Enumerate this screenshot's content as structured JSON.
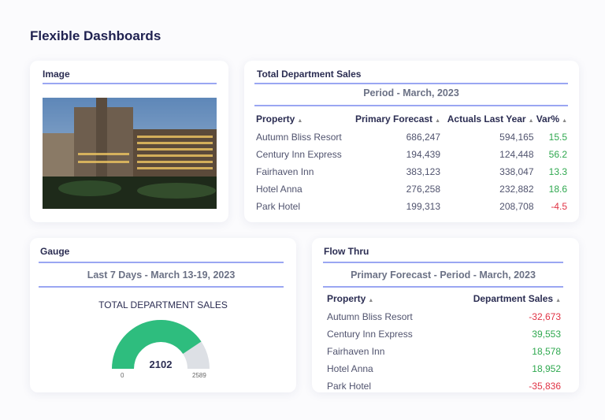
{
  "page_title": "Flexible Dashboards",
  "image_card": {
    "title": "Image"
  },
  "sales_card": {
    "title": "Total Department Sales",
    "period": "Period - March, 2023",
    "columns": [
      "Property",
      "Primary Forecast",
      "Actuals Last Year",
      "Var%"
    ],
    "rows": [
      [
        "Autumn Bliss Resort",
        "686,247",
        "594,165",
        "15.5"
      ],
      [
        "Century Inn Express",
        "194,439",
        "124,448",
        "56.2"
      ],
      [
        "Fairhaven Inn",
        "383,123",
        "338,047",
        "13.3"
      ],
      [
        "Hotel Anna",
        "276,258",
        "232,882",
        "18.6"
      ],
      [
        "Park Hotel",
        "199,313",
        "208,708",
        "-4.5"
      ]
    ]
  },
  "gauge_card": {
    "title": "Gauge",
    "period": "Last 7 Days - March 13-19, 2023",
    "label": "TOTAL DEPARTMENT SALES",
    "value": "2102",
    "min": "0",
    "max": "2589",
    "value_num": 2102,
    "max_num": 2589,
    "fill_color": "#2ebd7e",
    "track_color": "#dde0e5"
  },
  "flow_card": {
    "title": "Flow Thru",
    "period": "Primary Forecast - Period - March, 2023",
    "columns": [
      "Property",
      "Department Sales"
    ],
    "rows": [
      [
        "Autumn Bliss Resort",
        "-32,673"
      ],
      [
        "Century Inn Express",
        "39,553"
      ],
      [
        "Fairhaven Inn",
        "18,578"
      ],
      [
        "Hotel Anna",
        "18,952"
      ],
      [
        "Park Hotel",
        "-35,836"
      ]
    ]
  }
}
